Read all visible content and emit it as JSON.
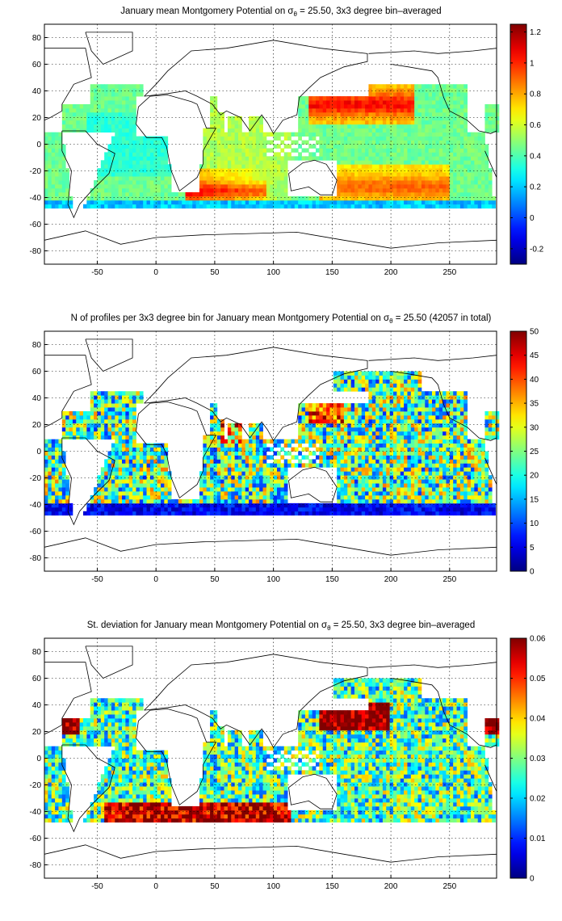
{
  "chart_data": [
    {
      "type": "heatmap",
      "title_main": "January mean Montgomery Potential on σ",
      "title_sub": "θ",
      "title_rest": " = 25.50, 3x3 degree bin–averaged",
      "xlim": [
        -95,
        290
      ],
      "ylim": [
        -90,
        90
      ],
      "xticks": [
        -50,
        0,
        50,
        100,
        150,
        200,
        250
      ],
      "yticks": [
        -80,
        -60,
        -40,
        -20,
        0,
        20,
        40,
        60,
        80
      ],
      "grid": true,
      "bin_size": 3,
      "colorbar": {
        "range": [
          -0.3,
          1.25
        ],
        "ticks": [
          -0.2,
          0,
          0.2,
          0.4,
          0.6,
          0.8,
          1,
          1.2
        ]
      },
      "field": "montgomery",
      "regions": [
        {
          "name": "pacific_kuroshio",
          "lon": [
            140,
            220
          ],
          "lat": [
            15,
            45
          ],
          "value": 0.95
        },
        {
          "name": "south_pacific",
          "lon": [
            140,
            240
          ],
          "lat": [
            -45,
            -15
          ],
          "value": 0.85
        },
        {
          "name": "agulhas",
          "lon": [
            25,
            90
          ],
          "lat": [
            -45,
            -20
          ],
          "value": 1.0
        },
        {
          "name": "atlantic_tropics",
          "lon": [
            -50,
            20
          ],
          "lat": [
            -20,
            25
          ],
          "value": 0.35
        },
        {
          "name": "indian",
          "lon": [
            40,
            110
          ],
          "lat": [
            -15,
            25
          ],
          "value": 0.5
        }
      ]
    },
    {
      "type": "heatmap",
      "title_main": "N of profiles per 3x3 degree bin for January mean Montgomery Potential on σ",
      "title_sub": "θ",
      "title_rest": " = 25.50 (42057 in total)",
      "xlim": [
        -95,
        290
      ],
      "ylim": [
        -90,
        90
      ],
      "xticks": [
        -50,
        0,
        50,
        100,
        150,
        200,
        250
      ],
      "yticks": [
        -80,
        -60,
        -40,
        -20,
        0,
        20,
        40,
        60,
        80
      ],
      "grid": true,
      "bin_size": 3,
      "colorbar": {
        "range": [
          0,
          50
        ],
        "ticks": [
          0,
          5,
          10,
          15,
          20,
          25,
          30,
          35,
          40,
          45,
          50
        ]
      },
      "field": "count",
      "regions": [
        {
          "name": "kuroshio",
          "lon": [
            130,
            160
          ],
          "lat": [
            20,
            40
          ],
          "value": 48
        },
        {
          "name": "arabian_sea",
          "lon": [
            55,
            75
          ],
          "lat": [
            5,
            25
          ],
          "value": 40
        },
        {
          "name": "open_ocean",
          "lon": [
            -95,
            290
          ],
          "lat": [
            -45,
            60
          ],
          "value": 18
        }
      ]
    },
    {
      "type": "heatmap",
      "title_main": "St. deviation for January mean Montgomery Potential on σ",
      "title_sub": "θ",
      "title_rest": " = 25.50, 3x3 degree bin–averaged",
      "xlim": [
        -95,
        290
      ],
      "ylim": [
        -90,
        90
      ],
      "xticks": [
        -50,
        0,
        50,
        100,
        150,
        200,
        250
      ],
      "yticks": [
        -80,
        -60,
        -40,
        -20,
        0,
        20,
        40,
        60,
        80
      ],
      "grid": true,
      "bin_size": 3,
      "colorbar": {
        "range": [
          0,
          0.06
        ],
        "ticks": [
          0,
          0.01,
          0.02,
          0.03,
          0.04,
          0.05,
          0.06
        ]
      },
      "field": "stdev",
      "regions": [
        {
          "name": "kuroshio",
          "lon": [
            140,
            200
          ],
          "lat": [
            20,
            42
          ],
          "value": 0.06
        },
        {
          "name": "southern_band",
          "lon": [
            -40,
            110
          ],
          "lat": [
            -48,
            -35
          ],
          "value": 0.06
        },
        {
          "name": "gulf_stream",
          "lon": [
            -80,
            -65
          ],
          "lat": [
            20,
            40
          ],
          "value": 0.06
        },
        {
          "name": "open_ocean",
          "lon": [
            -95,
            290
          ],
          "lat": [
            -45,
            60
          ],
          "value": 0.025
        }
      ]
    }
  ]
}
